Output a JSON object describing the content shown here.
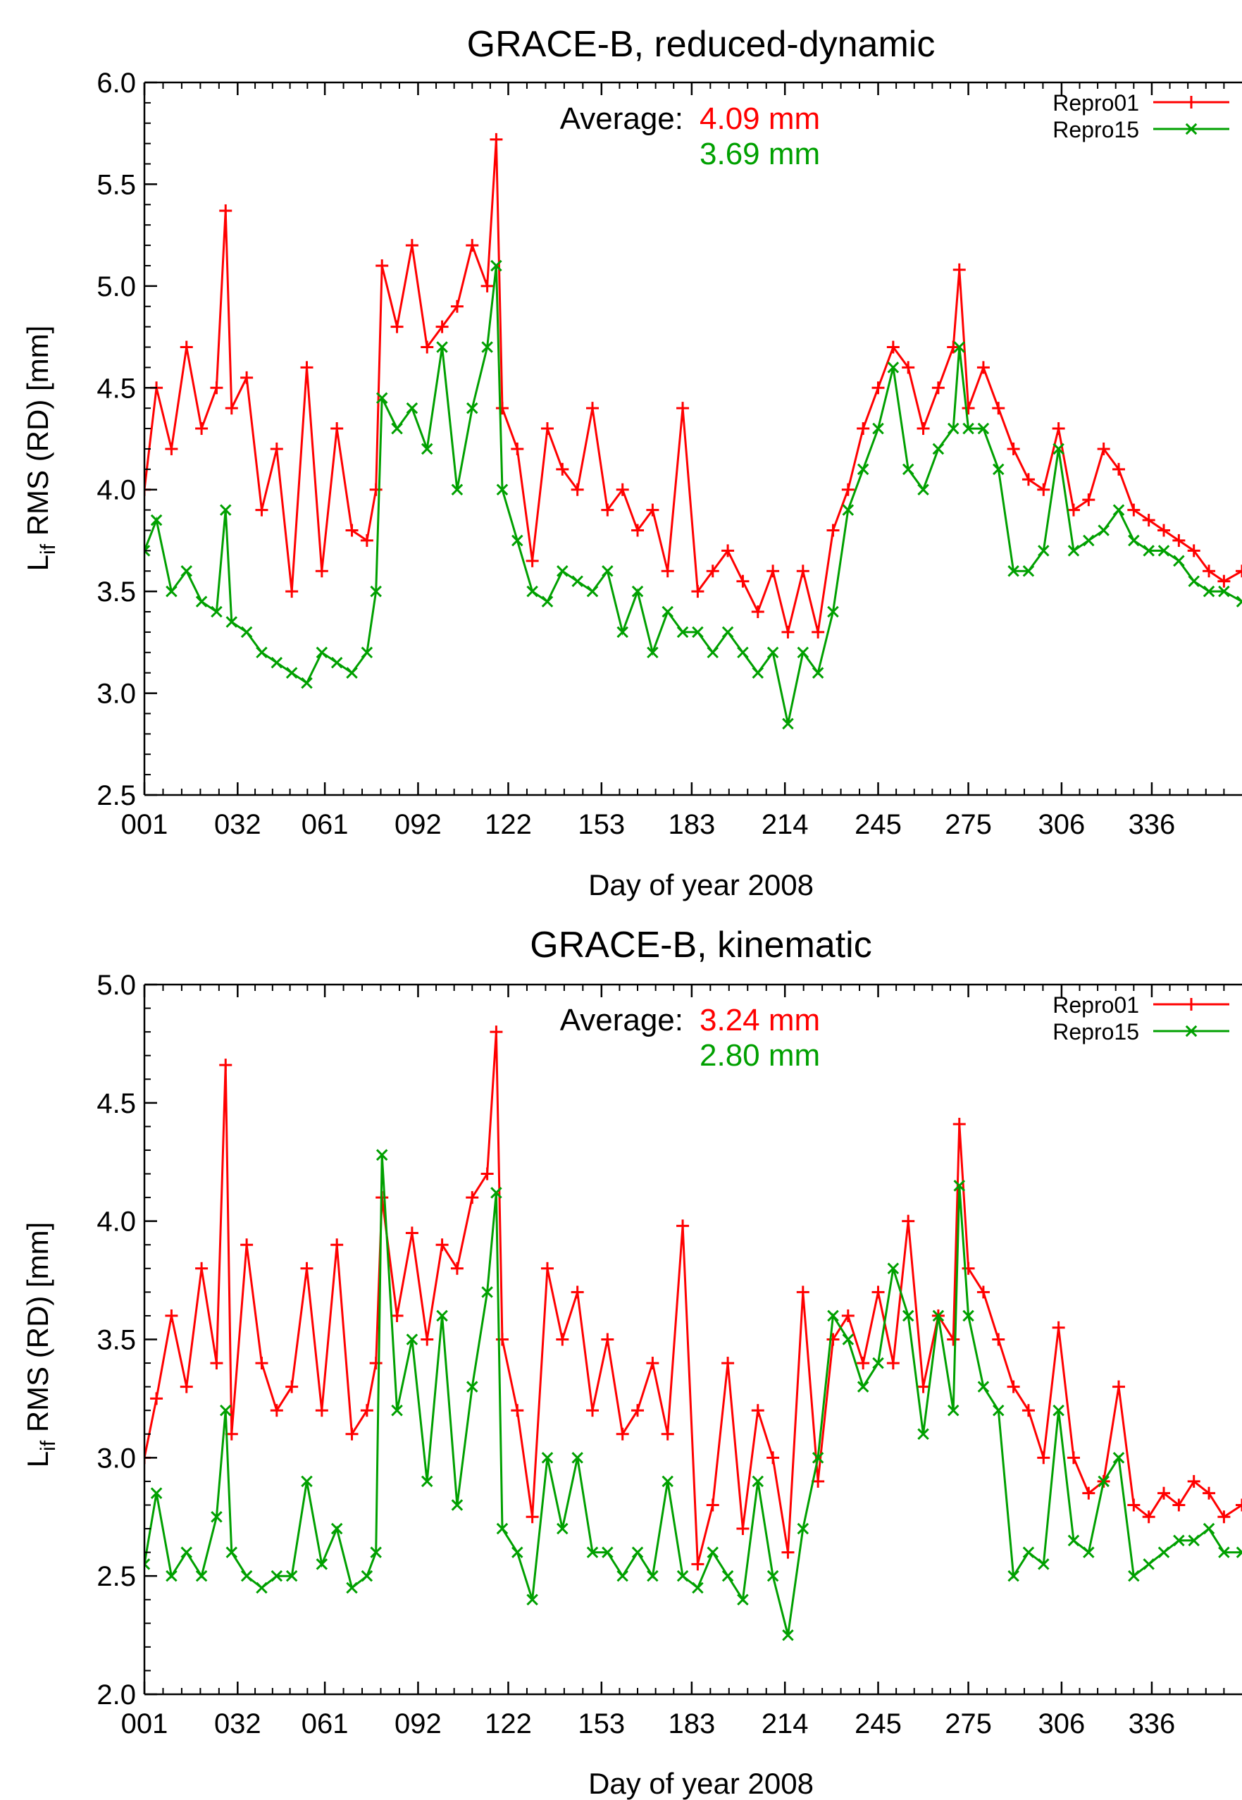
{
  "colors": {
    "repro01": "#ff0000",
    "repro15": "#00a000",
    "axis": "#000000"
  },
  "chart_data": [
    {
      "type": "line",
      "title": "GRACE-B, reduced-dynamic",
      "xlabel": "Day of year 2008",
      "ylabel_main": "L",
      "ylabel_sub": "if",
      "ylabel_rest": " RMS (RD) [mm]",
      "xlim": [
        1,
        366
      ],
      "ylim": [
        2.5,
        6.0
      ],
      "yticks": [
        2.5,
        3.0,
        3.5,
        4.0,
        4.5,
        5.0,
        5.5,
        6.0
      ],
      "ytick_labels": [
        "2.5",
        "3.0",
        "3.5",
        "4.0",
        "4.5",
        "5.0",
        "5.5",
        "6.0"
      ],
      "xticks": [
        1,
        32,
        61,
        92,
        122,
        153,
        183,
        214,
        245,
        275,
        306,
        336
      ],
      "xtick_labels": [
        "001",
        "032",
        "061",
        "092",
        "122",
        "153",
        "183",
        "214",
        "245",
        "275",
        "306",
        "336"
      ],
      "average_label": "Average:",
      "average_values": [
        "4.09 mm",
        "3.69 mm"
      ],
      "legend": [
        "Repro01",
        "Repro15"
      ],
      "series": [
        {
          "name": "Repro01",
          "x": [
            1,
            5,
            10,
            15,
            20,
            25,
            28,
            30,
            35,
            40,
            45,
            50,
            55,
            60,
            65,
            70,
            75,
            78,
            80,
            85,
            90,
            95,
            100,
            105,
            110,
            115,
            118,
            120,
            125,
            130,
            135,
            140,
            145,
            150,
            155,
            160,
            165,
            170,
            175,
            180,
            185,
            190,
            195,
            200,
            205,
            210,
            215,
            220,
            225,
            230,
            235,
            240,
            245,
            250,
            255,
            260,
            265,
            270,
            272,
            275,
            280,
            285,
            290,
            295,
            300,
            305,
            310,
            315,
            320,
            325,
            330,
            335,
            340,
            345,
            350,
            355,
            360,
            366
          ],
          "y": [
            4.0,
            4.5,
            4.2,
            4.7,
            4.3,
            4.5,
            5.37,
            4.4,
            4.55,
            3.9,
            4.2,
            3.5,
            4.6,
            3.6,
            4.3,
            3.8,
            3.75,
            4.0,
            5.1,
            4.8,
            5.2,
            4.7,
            4.8,
            4.9,
            5.2,
            5.0,
            5.72,
            4.4,
            4.2,
            3.65,
            4.3,
            4.1,
            4.0,
            4.4,
            3.9,
            4.0,
            3.8,
            3.9,
            3.6,
            4.4,
            3.5,
            3.6,
            3.7,
            3.55,
            3.4,
            3.6,
            3.3,
            3.6,
            3.3,
            3.8,
            4.0,
            4.3,
            4.5,
            4.7,
            4.6,
            4.3,
            4.5,
            4.7,
            5.08,
            4.4,
            4.6,
            4.4,
            4.2,
            4.05,
            4.0,
            4.3,
            3.9,
            3.95,
            4.2,
            4.1,
            3.9,
            3.85,
            3.8,
            3.75,
            3.7,
            3.6,
            3.55,
            3.6
          ]
        },
        {
          "name": "Repro15",
          "x": [
            1,
            5,
            10,
            15,
            20,
            25,
            28,
            30,
            35,
            40,
            45,
            50,
            55,
            60,
            65,
            70,
            75,
            78,
            80,
            85,
            90,
            95,
            100,
            105,
            110,
            115,
            118,
            120,
            125,
            130,
            135,
            140,
            145,
            150,
            155,
            160,
            165,
            170,
            175,
            180,
            185,
            190,
            195,
            200,
            205,
            210,
            215,
            220,
            225,
            230,
            235,
            240,
            245,
            250,
            255,
            260,
            265,
            270,
            272,
            275,
            280,
            285,
            290,
            295,
            300,
            305,
            310,
            315,
            320,
            325,
            330,
            335,
            340,
            345,
            350,
            355,
            360,
            366
          ],
          "y": [
            3.7,
            3.85,
            3.5,
            3.6,
            3.45,
            3.4,
            3.9,
            3.35,
            3.3,
            3.2,
            3.15,
            3.1,
            3.05,
            3.2,
            3.15,
            3.1,
            3.2,
            3.5,
            4.45,
            4.3,
            4.4,
            4.2,
            4.7,
            4.0,
            4.4,
            4.7,
            5.1,
            4.0,
            3.75,
            3.5,
            3.45,
            3.6,
            3.55,
            3.5,
            3.6,
            3.3,
            3.5,
            3.2,
            3.4,
            3.3,
            3.3,
            3.2,
            3.3,
            3.2,
            3.1,
            3.2,
            2.85,
            3.2,
            3.1,
            3.4,
            3.9,
            4.1,
            4.3,
            4.6,
            4.1,
            4.0,
            4.2,
            4.3,
            4.7,
            4.3,
            4.3,
            4.1,
            3.6,
            3.6,
            3.7,
            4.2,
            3.7,
            3.75,
            3.8,
            3.9,
            3.75,
            3.7,
            3.7,
            3.65,
            3.55,
            3.5,
            3.5,
            3.45
          ]
        }
      ]
    },
    {
      "type": "line",
      "title": "GRACE-B, kinematic",
      "xlabel": "Day of year 2008",
      "ylabel_main": "L",
      "ylabel_sub": "if",
      "ylabel_rest": " RMS (RD) [mm]",
      "xlim": [
        1,
        366
      ],
      "ylim": [
        2.0,
        5.0
      ],
      "yticks": [
        2.0,
        2.5,
        3.0,
        3.5,
        4.0,
        4.5,
        5.0
      ],
      "ytick_labels": [
        "2.0",
        "2.5",
        "3.0",
        "3.5",
        "4.0",
        "4.5",
        "5.0"
      ],
      "xticks": [
        1,
        32,
        61,
        92,
        122,
        153,
        183,
        214,
        245,
        275,
        306,
        336
      ],
      "xtick_labels": [
        "001",
        "032",
        "061",
        "092",
        "122",
        "153",
        "183",
        "214",
        "245",
        "275",
        "306",
        "336"
      ],
      "average_label": "Average:",
      "average_values": [
        "3.24 mm",
        "2.80 mm"
      ],
      "legend": [
        "Repro01",
        "Repro15"
      ],
      "series": [
        {
          "name": "Repro01",
          "x": [
            1,
            5,
            10,
            15,
            20,
            25,
            28,
            30,
            35,
            40,
            45,
            50,
            55,
            60,
            65,
            70,
            75,
            78,
            80,
            85,
            90,
            95,
            100,
            105,
            110,
            115,
            118,
            120,
            125,
            130,
            135,
            140,
            145,
            150,
            155,
            160,
            165,
            170,
            175,
            180,
            185,
            190,
            195,
            200,
            205,
            210,
            215,
            220,
            225,
            230,
            235,
            240,
            245,
            250,
            255,
            260,
            265,
            270,
            272,
            275,
            280,
            285,
            290,
            295,
            300,
            305,
            310,
            315,
            320,
            325,
            330,
            335,
            340,
            345,
            350,
            355,
            360,
            366
          ],
          "y": [
            3.0,
            3.25,
            3.6,
            3.3,
            3.8,
            3.4,
            4.66,
            3.1,
            3.9,
            3.4,
            3.2,
            3.3,
            3.8,
            3.2,
            3.9,
            3.1,
            3.2,
            3.4,
            4.1,
            3.6,
            3.95,
            3.5,
            3.9,
            3.8,
            4.1,
            4.2,
            4.8,
            3.5,
            3.2,
            2.75,
            3.8,
            3.5,
            3.7,
            3.2,
            3.5,
            3.1,
            3.2,
            3.4,
            3.1,
            3.98,
            2.55,
            2.8,
            3.4,
            2.7,
            3.2,
            3.0,
            2.6,
            3.7,
            2.9,
            3.5,
            3.6,
            3.4,
            3.7,
            3.4,
            4.0,
            3.3,
            3.6,
            3.5,
            4.41,
            3.8,
            3.7,
            3.5,
            3.3,
            3.2,
            3.0,
            3.55,
            3.0,
            2.85,
            2.9,
            3.3,
            2.8,
            2.75,
            2.85,
            2.8,
            2.9,
            2.85,
            2.75,
            2.8
          ]
        },
        {
          "name": "Repro15",
          "x": [
            1,
            5,
            10,
            15,
            20,
            25,
            28,
            30,
            35,
            40,
            45,
            50,
            55,
            60,
            65,
            70,
            75,
            78,
            80,
            85,
            90,
            95,
            100,
            105,
            110,
            115,
            118,
            120,
            125,
            130,
            135,
            140,
            145,
            150,
            155,
            160,
            165,
            170,
            175,
            180,
            185,
            190,
            195,
            200,
            205,
            210,
            215,
            220,
            225,
            230,
            235,
            240,
            245,
            250,
            255,
            260,
            265,
            270,
            272,
            275,
            280,
            285,
            290,
            295,
            300,
            305,
            310,
            315,
            320,
            325,
            330,
            335,
            340,
            345,
            350,
            355,
            360,
            366
          ],
          "y": [
            2.55,
            2.85,
            2.5,
            2.6,
            2.5,
            2.75,
            3.2,
            2.6,
            2.5,
            2.45,
            2.5,
            2.5,
            2.9,
            2.55,
            2.7,
            2.45,
            2.5,
            2.6,
            4.28,
            3.2,
            3.5,
            2.9,
            3.6,
            2.8,
            3.3,
            3.7,
            4.12,
            2.7,
            2.6,
            2.4,
            3.0,
            2.7,
            3.0,
            2.6,
            2.6,
            2.5,
            2.6,
            2.5,
            2.9,
            2.5,
            2.45,
            2.6,
            2.5,
            2.4,
            2.9,
            2.5,
            2.25,
            2.7,
            3.0,
            3.6,
            3.5,
            3.3,
            3.4,
            3.8,
            3.6,
            3.1,
            3.6,
            3.2,
            4.15,
            3.6,
            3.3,
            3.2,
            2.5,
            2.6,
            2.55,
            3.2,
            2.65,
            2.6,
            2.9,
            3.0,
            2.5,
            2.55,
            2.6,
            2.65,
            2.65,
            2.7,
            2.6,
            2.6
          ]
        }
      ]
    }
  ]
}
